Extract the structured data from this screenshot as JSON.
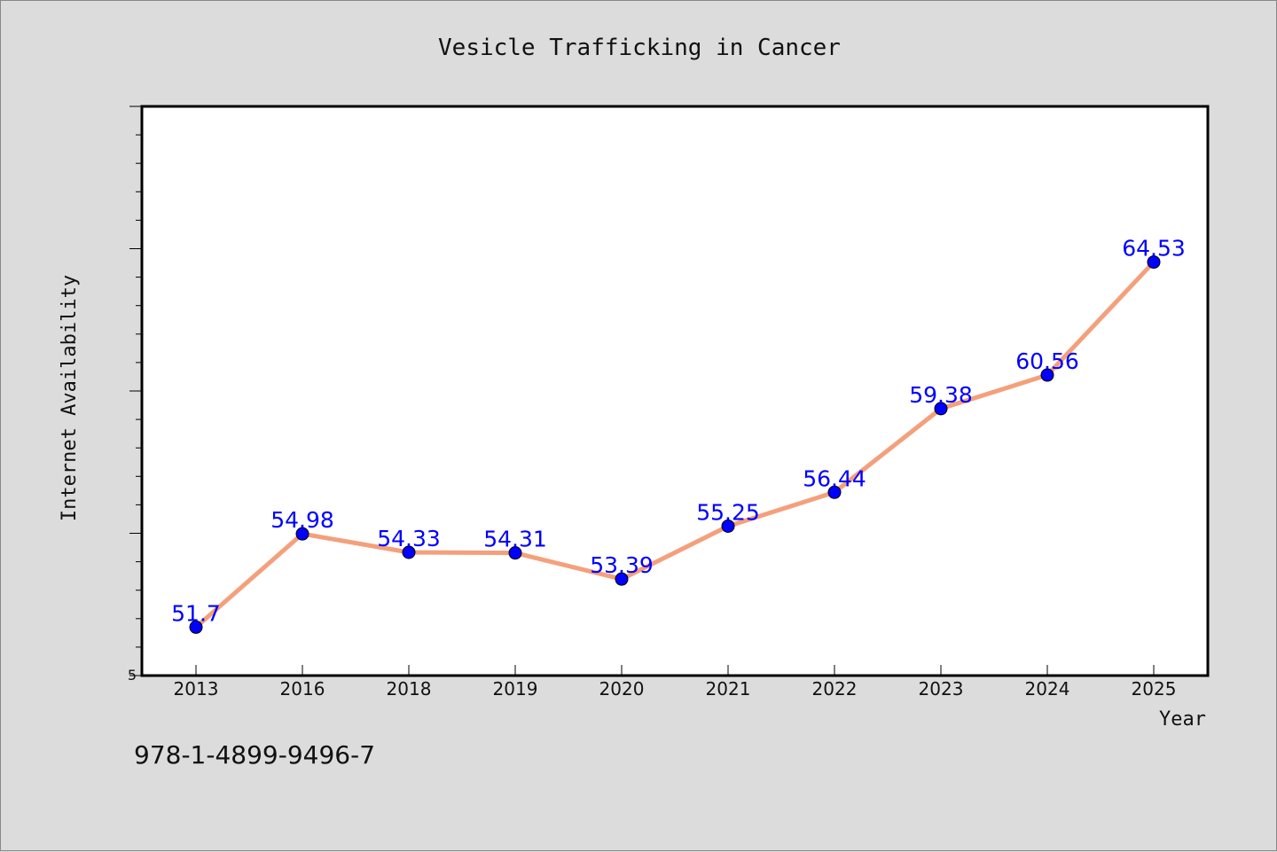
{
  "chart_data": {
    "type": "line",
    "title": "Vesicle Trafficking in Cancer",
    "xlabel": "Year",
    "ylabel": "Internet Availability",
    "categories": [
      "2013",
      "2016",
      "2018",
      "2019",
      "2020",
      "2021",
      "2022",
      "2023",
      "2024",
      "2025"
    ],
    "series": [
      {
        "values": [
          51.7,
          54.98,
          54.33,
          54.31,
          53.39,
          55.25,
          56.44,
          59.38,
          60.56,
          64.53
        ],
        "data_labels": [
          "51.7",
          "54.98",
          "54.33",
          "54.31",
          "53.39",
          "55.25",
          "56.44",
          "59.38",
          "60.56",
          "64.53"
        ]
      }
    ],
    "ylim": [
      50,
      70
    ],
    "y_tick_labels": [
      "5"
    ],
    "grid": false,
    "legend": "none",
    "colors": {
      "line": "#f4a07c",
      "marker": "#0000ff",
      "data_label": "#0000ff",
      "plot_background": "#ffffff",
      "figure_background": "#dcdcdc"
    }
  },
  "footer": {
    "isbn": "978-1-4899-9496-7"
  }
}
